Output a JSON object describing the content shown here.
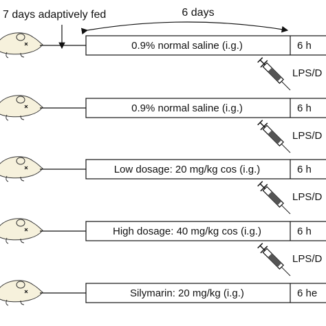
{
  "header": {
    "feeding": "7 days adaptively fed",
    "duration": "6 days"
  },
  "rows": [
    {
      "treatment": "0.9% normal saline (i.g.)",
      "time": "6 h"
    },
    {
      "treatment": "0.9% normal saline  (i.g.)",
      "time": "6 h"
    },
    {
      "treatment": "Low dosage: 20 mg/kg cos (i.g.)",
      "time": "6 h"
    },
    {
      "treatment": "High dosage: 40 mg/kg cos (i.g.)",
      "time": "6 h"
    },
    {
      "treatment": "Silymarin: 20 mg/kg (i.g.)",
      "time": "6 he"
    }
  ],
  "injections": [
    "LPS/D",
    "LPS/D",
    "LPS/D",
    "LPS/D"
  ]
}
